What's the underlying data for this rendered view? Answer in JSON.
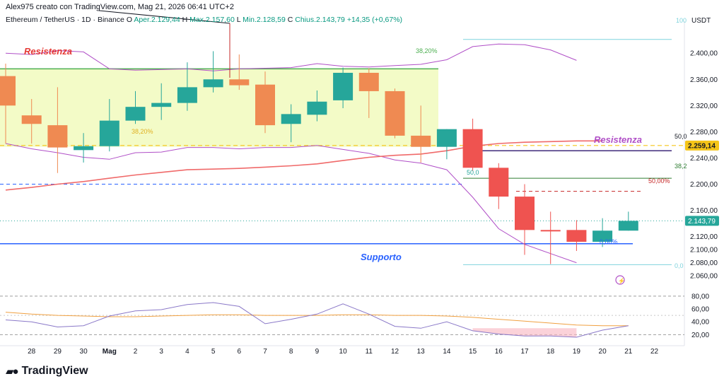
{
  "header": {
    "author_line": "Alex975 creato con TradingView.com, Mag 21, 2026 06:41 UTC+2",
    "symbol": "Ethereum / TetherUS · 1D · Binance",
    "o_label": "O",
    "o_value": "Aper.2.129,44",
    "h_label": "H",
    "h_value": "Max.2.157,60",
    "l_label": "L",
    "l_value": "Min.2.128,59",
    "c_label": "C",
    "c_value": "Chius.2.143,79",
    "change": "+14,35 (+0,67%)"
  },
  "currency": "USDT",
  "logo_text": "TradingView",
  "colors": {
    "up": "#26a69a",
    "down": "#ef5350",
    "down_orange": "#ef8a52",
    "resistance_zone": "#f3fbc7",
    "resistance_line": "#4caf50",
    "support_line": "#2962ff",
    "purple": "#b04fc7",
    "ma": "#f06a6a",
    "dashed_blue": "#2962ff",
    "dashed_orange": "#f5c518",
    "rsi": "#8a78c8",
    "rsi_ma": "#f0a040"
  },
  "chart_data": {
    "type": "candlestick",
    "x_labels": [
      "28",
      "29",
      "30",
      "Mag",
      "2",
      "3",
      "4",
      "5",
      "6",
      "7",
      "8",
      "9",
      "10",
      "11",
      "12",
      "13",
      "14",
      "15",
      "16",
      "17",
      "18",
      "19",
      "20",
      "21",
      "22"
    ],
    "y_ticks": [
      "2.400,00",
      "2.360,00",
      "2.320,00",
      "2.280,00",
      "2.240,00",
      "2.200,00",
      "2.160,00",
      "2.120,00",
      "2.100,00",
      "2.080,00",
      "2.060,00"
    ],
    "y_tick_values": [
      2400,
      2360,
      2320,
      2280,
      2240,
      2200,
      2160,
      2120,
      2100,
      2080,
      2060
    ],
    "ylim": [
      2044,
      2438
    ],
    "candles": [
      {
        "x": "27",
        "o": 2320,
        "h": 2384,
        "l": 2262,
        "c": 2365,
        "color": "orange"
      },
      {
        "x": "28",
        "o": 2305,
        "h": 2330,
        "l": 2262,
        "c": 2292,
        "color": "orange"
      },
      {
        "x": "29",
        "o": 2290,
        "h": 2348,
        "l": 2217,
        "c": 2256,
        "color": "orange"
      },
      {
        "x": "30",
        "o": 2252,
        "h": 2278,
        "l": 2233,
        "c": 2258,
        "color": "green"
      },
      {
        "x": "Mag",
        "o": 2258,
        "h": 2330,
        "l": 2250,
        "c": 2297,
        "color": "green"
      },
      {
        "x": "2",
        "o": 2297,
        "h": 2342,
        "l": 2292,
        "c": 2318,
        "color": "green"
      },
      {
        "x": "3",
        "o": 2318,
        "h": 2354,
        "l": 2298,
        "c": 2324,
        "color": "green"
      },
      {
        "x": "4",
        "o": 2324,
        "h": 2386,
        "l": 2312,
        "c": 2348,
        "color": "green"
      },
      {
        "x": "5",
        "o": 2348,
        "h": 2403,
        "l": 2340,
        "c": 2360,
        "color": "green"
      },
      {
        "x": "6",
        "o": 2360,
        "h": 2398,
        "l": 2344,
        "c": 2351,
        "color": "orange"
      },
      {
        "x": "7",
        "o": 2352,
        "h": 2372,
        "l": 2278,
        "c": 2290,
        "color": "orange"
      },
      {
        "x": "8",
        "o": 2292,
        "h": 2322,
        "l": 2264,
        "c": 2307,
        "color": "green"
      },
      {
        "x": "9",
        "o": 2306,
        "h": 2343,
        "l": 2296,
        "c": 2326,
        "color": "green"
      },
      {
        "x": "10",
        "o": 2328,
        "h": 2378,
        "l": 2316,
        "c": 2370,
        "color": "green"
      },
      {
        "x": "11",
        "o": 2370,
        "h": 2377,
        "l": 2301,
        "c": 2342,
        "color": "orange"
      },
      {
        "x": "12",
        "o": 2342,
        "h": 2346,
        "l": 2270,
        "c": 2274,
        "color": "orange"
      },
      {
        "x": "13",
        "o": 2274,
        "h": 2320,
        "l": 2233,
        "c": 2257,
        "color": "orange"
      },
      {
        "x": "14",
        "o": 2257,
        "h": 2284,
        "l": 2238,
        "c": 2284,
        "color": "green"
      },
      {
        "x": "15",
        "o": 2284,
        "h": 2300,
        "l": 2220,
        "c": 2225,
        "color": "red"
      },
      {
        "x": "16",
        "o": 2225,
        "h": 2232,
        "l": 2162,
        "c": 2181,
        "color": "red"
      },
      {
        "x": "17",
        "o": 2181,
        "h": 2200,
        "l": 2092,
        "c": 2130,
        "color": "red"
      },
      {
        "x": "18",
        "o": 2130,
        "h": 2158,
        "l": 2078,
        "c": 2130,
        "color": "red"
      },
      {
        "x": "19",
        "o": 2130,
        "h": 2145,
        "l": 2098,
        "c": 2112,
        "color": "red"
      },
      {
        "x": "20",
        "o": 2112,
        "h": 2148,
        "l": 2104,
        "c": 2129,
        "color": "green"
      },
      {
        "x": "21",
        "o": 2129,
        "h": 2158,
        "l": 2129,
        "c": 2144,
        "color": "green"
      }
    ],
    "ma_line": [
      2191,
      2195,
      2200,
      2204,
      2209,
      2214,
      2218,
      2222,
      2223,
      2224,
      2226,
      2228,
      2231,
      2236,
      2241,
      2244,
      2246,
      2251,
      2258,
      2262,
      2264,
      2265,
      2266,
      2266
    ],
    "envelope_upper": [
      2400,
      2398,
      2404,
      2402,
      2376,
      2374,
      2375,
      2376,
      2373,
      2376,
      2377,
      2378,
      2384,
      2380,
      2379,
      2381,
      2383,
      2390,
      2410,
      2414,
      2413,
      2405,
      2389
    ],
    "envelope_lower": [
      2262,
      2254,
      2248,
      2241,
      2238,
      2248,
      2249,
      2256,
      2256,
      2254,
      2256,
      2256,
      2259,
      2253,
      2247,
      2237,
      2232,
      2222,
      2180,
      2132,
      2108,
      2094,
      2080
    ],
    "levels": {
      "resistance_top": 2376,
      "resistance_zone_bottom": 2257,
      "fib_38_20_top": "38,20%",
      "fib_38_20_zone": "38,20%",
      "fib_50": "50,0",
      "fib_50_pct": "50,00%",
      "fib_38": "38,2",
      "fib_50_small": "50,0",
      "fib_0_pct": "0,00%",
      "fib_0": "0,0",
      "fib_top": "100",
      "value_right_label": "2.259,14",
      "last_price_label": "2.143,79",
      "support": 2109,
      "resistance_right": 2251,
      "fib_green_right": 2209,
      "red_dashed": 2189,
      "dashed_blue": 2200,
      "dashed_orange": 2259,
      "cyan_bottom": 2077,
      "cyan_top": 2421
    },
    "annotations": {
      "resistenza_left": "Resistenza",
      "resistenza_right": "Resistenza",
      "supporto": "Supporto"
    },
    "rsi": {
      "y_ticks": [
        "80,00",
        "60,00",
        "40,00",
        "20,00"
      ],
      "y_tick_values": [
        80,
        60,
        40,
        20
      ],
      "ylim": [
        5,
        92
      ],
      "values": [
        43,
        40,
        32,
        34,
        49,
        57,
        59,
        67,
        70,
        64,
        37,
        44,
        52,
        68,
        52,
        33,
        30,
        40,
        26,
        21,
        18,
        18,
        16,
        27,
        34
      ],
      "ma": [
        55,
        52,
        50,
        49,
        48,
        48,
        49,
        50,
        51,
        51,
        50,
        50,
        50,
        51,
        51,
        50,
        50,
        49,
        47,
        44,
        41,
        38,
        35,
        34,
        34
      ]
    }
  }
}
